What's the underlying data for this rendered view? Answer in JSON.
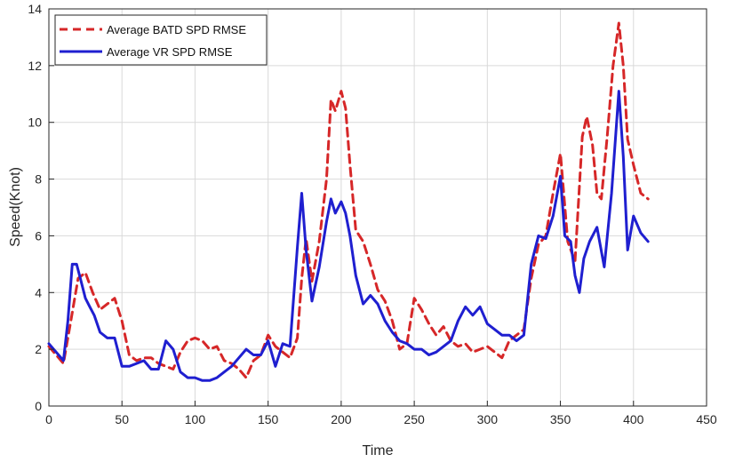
{
  "chart_data": {
    "type": "line",
    "title": "",
    "xlabel": "Time",
    "ylabel": "Speed(Knot)",
    "xlim": [
      0,
      450
    ],
    "ylim": [
      0,
      14
    ],
    "xticks": [
      0,
      50,
      100,
      150,
      200,
      250,
      300,
      350,
      400,
      450
    ],
    "yticks": [
      0,
      2,
      4,
      6,
      8,
      10,
      12,
      14
    ],
    "grid": true,
    "legend_position": "top-left",
    "series": [
      {
        "name": "Average BATD SPD RMSE",
        "color": "#d62728",
        "style": "dashed",
        "x": [
          0,
          5,
          10,
          15,
          20,
          25,
          30,
          35,
          40,
          45,
          50,
          55,
          60,
          65,
          70,
          75,
          80,
          85,
          90,
          95,
          100,
          105,
          110,
          115,
          120,
          125,
          130,
          135,
          140,
          145,
          150,
          155,
          160,
          165,
          170,
          173,
          176,
          180,
          185,
          190,
          193,
          196,
          200,
          203,
          206,
          210,
          215,
          220,
          225,
          230,
          235,
          240,
          245,
          250,
          255,
          260,
          265,
          270,
          275,
          280,
          285,
          290,
          295,
          300,
          305,
          310,
          315,
          320,
          325,
          330,
          335,
          340,
          345,
          350,
          355,
          360,
          365,
          368,
          372,
          375,
          378,
          382,
          386,
          390,
          393,
          396,
          400,
          405,
          410
        ],
        "y": [
          2.1,
          1.8,
          1.5,
          3.0,
          4.5,
          4.7,
          4.0,
          3.4,
          3.6,
          3.8,
          3.0,
          1.8,
          1.6,
          1.7,
          1.7,
          1.5,
          1.4,
          1.3,
          1.9,
          2.3,
          2.4,
          2.3,
          2.0,
          2.1,
          1.6,
          1.5,
          1.3,
          1.0,
          1.6,
          1.8,
          2.5,
          2.1,
          1.9,
          1.7,
          2.4,
          4.5,
          5.9,
          4.4,
          5.8,
          8.0,
          10.8,
          10.4,
          11.1,
          10.5,
          8.5,
          6.2,
          5.8,
          5.0,
          4.1,
          3.7,
          3.0,
          2.0,
          2.2,
          3.8,
          3.4,
          2.9,
          2.5,
          2.8,
          2.3,
          2.1,
          2.2,
          1.9,
          2.0,
          2.1,
          1.9,
          1.7,
          2.3,
          2.5,
          2.7,
          4.5,
          5.7,
          6.0,
          7.5,
          8.9,
          5.8,
          5.1,
          9.5,
          10.2,
          9.2,
          7.5,
          7.3,
          9.5,
          12.0,
          13.5,
          12.0,
          9.4,
          8.5,
          7.5,
          7.3
        ]
      },
      {
        "name": "Average VR SPD RMSE",
        "color": "#1f1fd0",
        "style": "solid",
        "x": [
          0,
          5,
          10,
          13,
          16,
          19,
          22,
          25,
          28,
          31,
          35,
          40,
          45,
          50,
          55,
          60,
          65,
          70,
          75,
          80,
          85,
          90,
          95,
          100,
          105,
          110,
          115,
          120,
          125,
          130,
          135,
          140,
          145,
          150,
          155,
          160,
          165,
          170,
          173,
          176,
          180,
          185,
          190,
          193,
          196,
          200,
          203,
          206,
          210,
          215,
          220,
          225,
          230,
          235,
          240,
          245,
          250,
          255,
          260,
          265,
          270,
          275,
          280,
          285,
          290,
          295,
          300,
          305,
          310,
          315,
          320,
          325,
          330,
          335,
          340,
          345,
          350,
          353,
          357,
          360,
          363,
          366,
          370,
          375,
          380,
          385,
          390,
          393,
          396,
          400,
          405,
          410
        ],
        "y": [
          2.2,
          1.9,
          1.6,
          3.0,
          5.0,
          5.0,
          4.4,
          3.8,
          3.5,
          3.2,
          2.6,
          2.4,
          2.4,
          1.4,
          1.4,
          1.5,
          1.6,
          1.3,
          1.3,
          2.3,
          2.0,
          1.2,
          1.0,
          1.0,
          0.9,
          0.9,
          1.0,
          1.2,
          1.4,
          1.7,
          2.0,
          1.8,
          1.8,
          2.3,
          1.4,
          2.2,
          2.1,
          5.6,
          7.5,
          5.5,
          3.7,
          4.9,
          6.5,
          7.3,
          6.8,
          7.2,
          6.8,
          6.0,
          4.6,
          3.6,
          3.9,
          3.6,
          3.0,
          2.6,
          2.3,
          2.2,
          2.0,
          2.0,
          1.8,
          1.9,
          2.1,
          2.3,
          3.0,
          3.5,
          3.2,
          3.5,
          2.9,
          2.7,
          2.5,
          2.5,
          2.3,
          2.5,
          5.0,
          6.0,
          5.9,
          6.7,
          8.1,
          6.0,
          5.8,
          4.6,
          4.0,
          5.2,
          5.8,
          6.3,
          4.9,
          7.5,
          11.1,
          8.8,
          5.5,
          6.7,
          6.1,
          5.8
        ]
      }
    ]
  }
}
